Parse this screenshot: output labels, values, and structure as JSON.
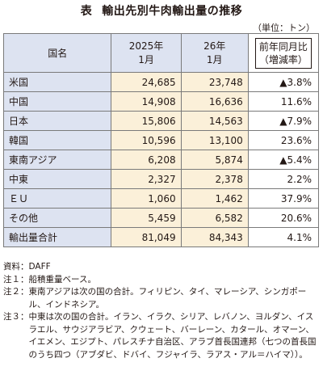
{
  "title": {
    "label": "表",
    "text": "輸出先別牛肉輸出量の推移"
  },
  "unit": "（単位：トン）",
  "table": {
    "headers": {
      "name": "国名",
      "col1_line1": "2025年",
      "col1_line2": "1月",
      "col2_line1": "26年",
      "col2_line2": "1月",
      "col3_line1": "前年同月比",
      "col3_line2": "（増減率）"
    },
    "rows": [
      {
        "name": "米国",
        "y2025": "24,685",
        "y2026": "23,748",
        "change": "▲3.8%"
      },
      {
        "name": "中国",
        "y2025": "14,908",
        "y2026": "16,636",
        "change": "11.6%"
      },
      {
        "name": "日本",
        "y2025": "15,806",
        "y2026": "14,563",
        "change": "▲7.9%"
      },
      {
        "name": "韓国",
        "y2025": "10,596",
        "y2026": "13,100",
        "change": "23.6%"
      },
      {
        "name": "東南アジア",
        "y2025": "6,208",
        "y2026": "5,874",
        "change": "▲5.4%"
      },
      {
        "name": "中東",
        "y2025": "2,327",
        "y2026": "2,378",
        "change": "2.2%"
      },
      {
        "name": "ＥＵ",
        "y2025": "1,060",
        "y2026": "1,462",
        "change": "37.9%"
      },
      {
        "name": "その他",
        "y2025": "5,459",
        "y2026": "6,582",
        "change": "20.6%"
      },
      {
        "name": "輸出量合計",
        "y2025": "81,049",
        "y2026": "84,343",
        "change": "4.1%"
      }
    ]
  },
  "notes": [
    {
      "key": "資料：",
      "text": "DAFF"
    },
    {
      "key": "注１：",
      "text": "船積重量ベース。"
    },
    {
      "key": "注２：",
      "text": "東南アジアは次の国の合計。フィリピン、タイ、マレーシア、シンガポール、インドネシア。"
    },
    {
      "key": "注３：",
      "text": "中東は次の国の合計。イラン、イラク、シリア、レバノン、ヨルダン、イスラエル、サウジアラビア、クウェート、バーレーン、カタール、オマーン、イエメン、エジプト、パレスチナ自治区、アラブ首長国連邦（七つの首長国のうち四つ（アブダビ、ドバイ、フジャイラ、ラアス・アル＝ハイマ））。"
    }
  ],
  "colors": {
    "header_fill": "#dde3f1",
    "value_fill": "#fbf0d9",
    "text": "#231815"
  }
}
